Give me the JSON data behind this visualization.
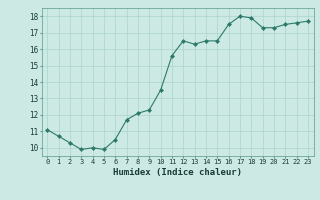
{
  "x": [
    0,
    1,
    2,
    3,
    4,
    5,
    6,
    7,
    8,
    9,
    10,
    11,
    12,
    13,
    14,
    15,
    16,
    17,
    18,
    19,
    20,
    21,
    22,
    23
  ],
  "y": [
    11.1,
    10.7,
    10.3,
    9.9,
    10.0,
    9.9,
    10.5,
    11.7,
    12.1,
    12.3,
    13.5,
    15.6,
    16.5,
    16.3,
    16.5,
    16.5,
    17.5,
    18.0,
    17.9,
    17.3,
    17.3,
    17.5,
    17.6,
    17.7
  ],
  "line_color": "#2d7a6a",
  "marker_color": "#2d7a6a",
  "bg_color": "#cce9e4",
  "grid_color": "#aad4cc",
  "xlabel": "Humidex (Indice chaleur)",
  "xlim": [
    -0.5,
    23.5
  ],
  "ylim": [
    9.5,
    18.5
  ],
  "yticks": [
    10,
    11,
    12,
    13,
    14,
    15,
    16,
    17,
    18
  ],
  "xticks": [
    0,
    1,
    2,
    3,
    4,
    5,
    6,
    7,
    8,
    9,
    10,
    11,
    12,
    13,
    14,
    15,
    16,
    17,
    18,
    19,
    20,
    21,
    22,
    23
  ],
  "xtick_labels": [
    "0",
    "1",
    "2",
    "3",
    "4",
    "5",
    "6",
    "7",
    "8",
    "9",
    "10",
    "11",
    "12",
    "13",
    "14",
    "15",
    "16",
    "17",
    "18",
    "19",
    "20",
    "21",
    "22",
    "23"
  ]
}
